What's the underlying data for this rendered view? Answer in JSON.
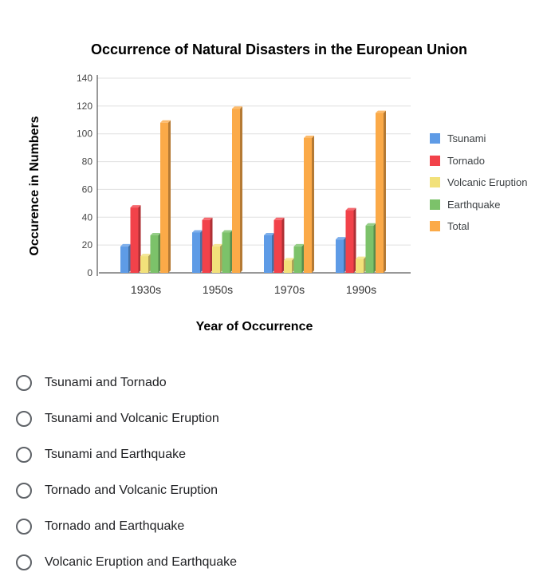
{
  "chart_data": {
    "type": "bar",
    "title": "Occurrence of Natural Disasters in the European Union",
    "xlabel": "Year of Occurrence",
    "ylabel": "Occurence in Numbers",
    "categories": [
      "1930s",
      "1950s",
      "1970s",
      "1990s"
    ],
    "ylim": [
      0,
      140
    ],
    "yticks": [
      0,
      20,
      40,
      60,
      80,
      100,
      120,
      140
    ],
    "grid": true,
    "legend_position": "right",
    "series": [
      {
        "name": "Tsunami",
        "color": "#5e9be6",
        "values": [
          19,
          29,
          27,
          24
        ]
      },
      {
        "name": "Tornado",
        "color": "#f2424a",
        "values": [
          47,
          38,
          38,
          45
        ]
      },
      {
        "name": "Volcanic Eruption",
        "color": "#f2e17a",
        "values": [
          12,
          19,
          9,
          10
        ]
      },
      {
        "name": "Earthquake",
        "color": "#7cc26a",
        "values": [
          27,
          29,
          19,
          34
        ]
      },
      {
        "name": "Total",
        "color": "#fbaa48",
        "values": [
          108,
          118,
          97,
          115
        ]
      }
    ]
  },
  "question": {
    "options": [
      {
        "label": "Tsunami and Tornado",
        "selected": false
      },
      {
        "label": "Tsunami and Volcanic Eruption",
        "selected": false
      },
      {
        "label": "Tsunami and Earthquake",
        "selected": false
      },
      {
        "label": "Tornado and Volcanic Eruption",
        "selected": false
      },
      {
        "label": "Tornado and Earthquake",
        "selected": false
      },
      {
        "label": "Volcanic Eruption and Earthquake",
        "selected": false
      }
    ]
  }
}
